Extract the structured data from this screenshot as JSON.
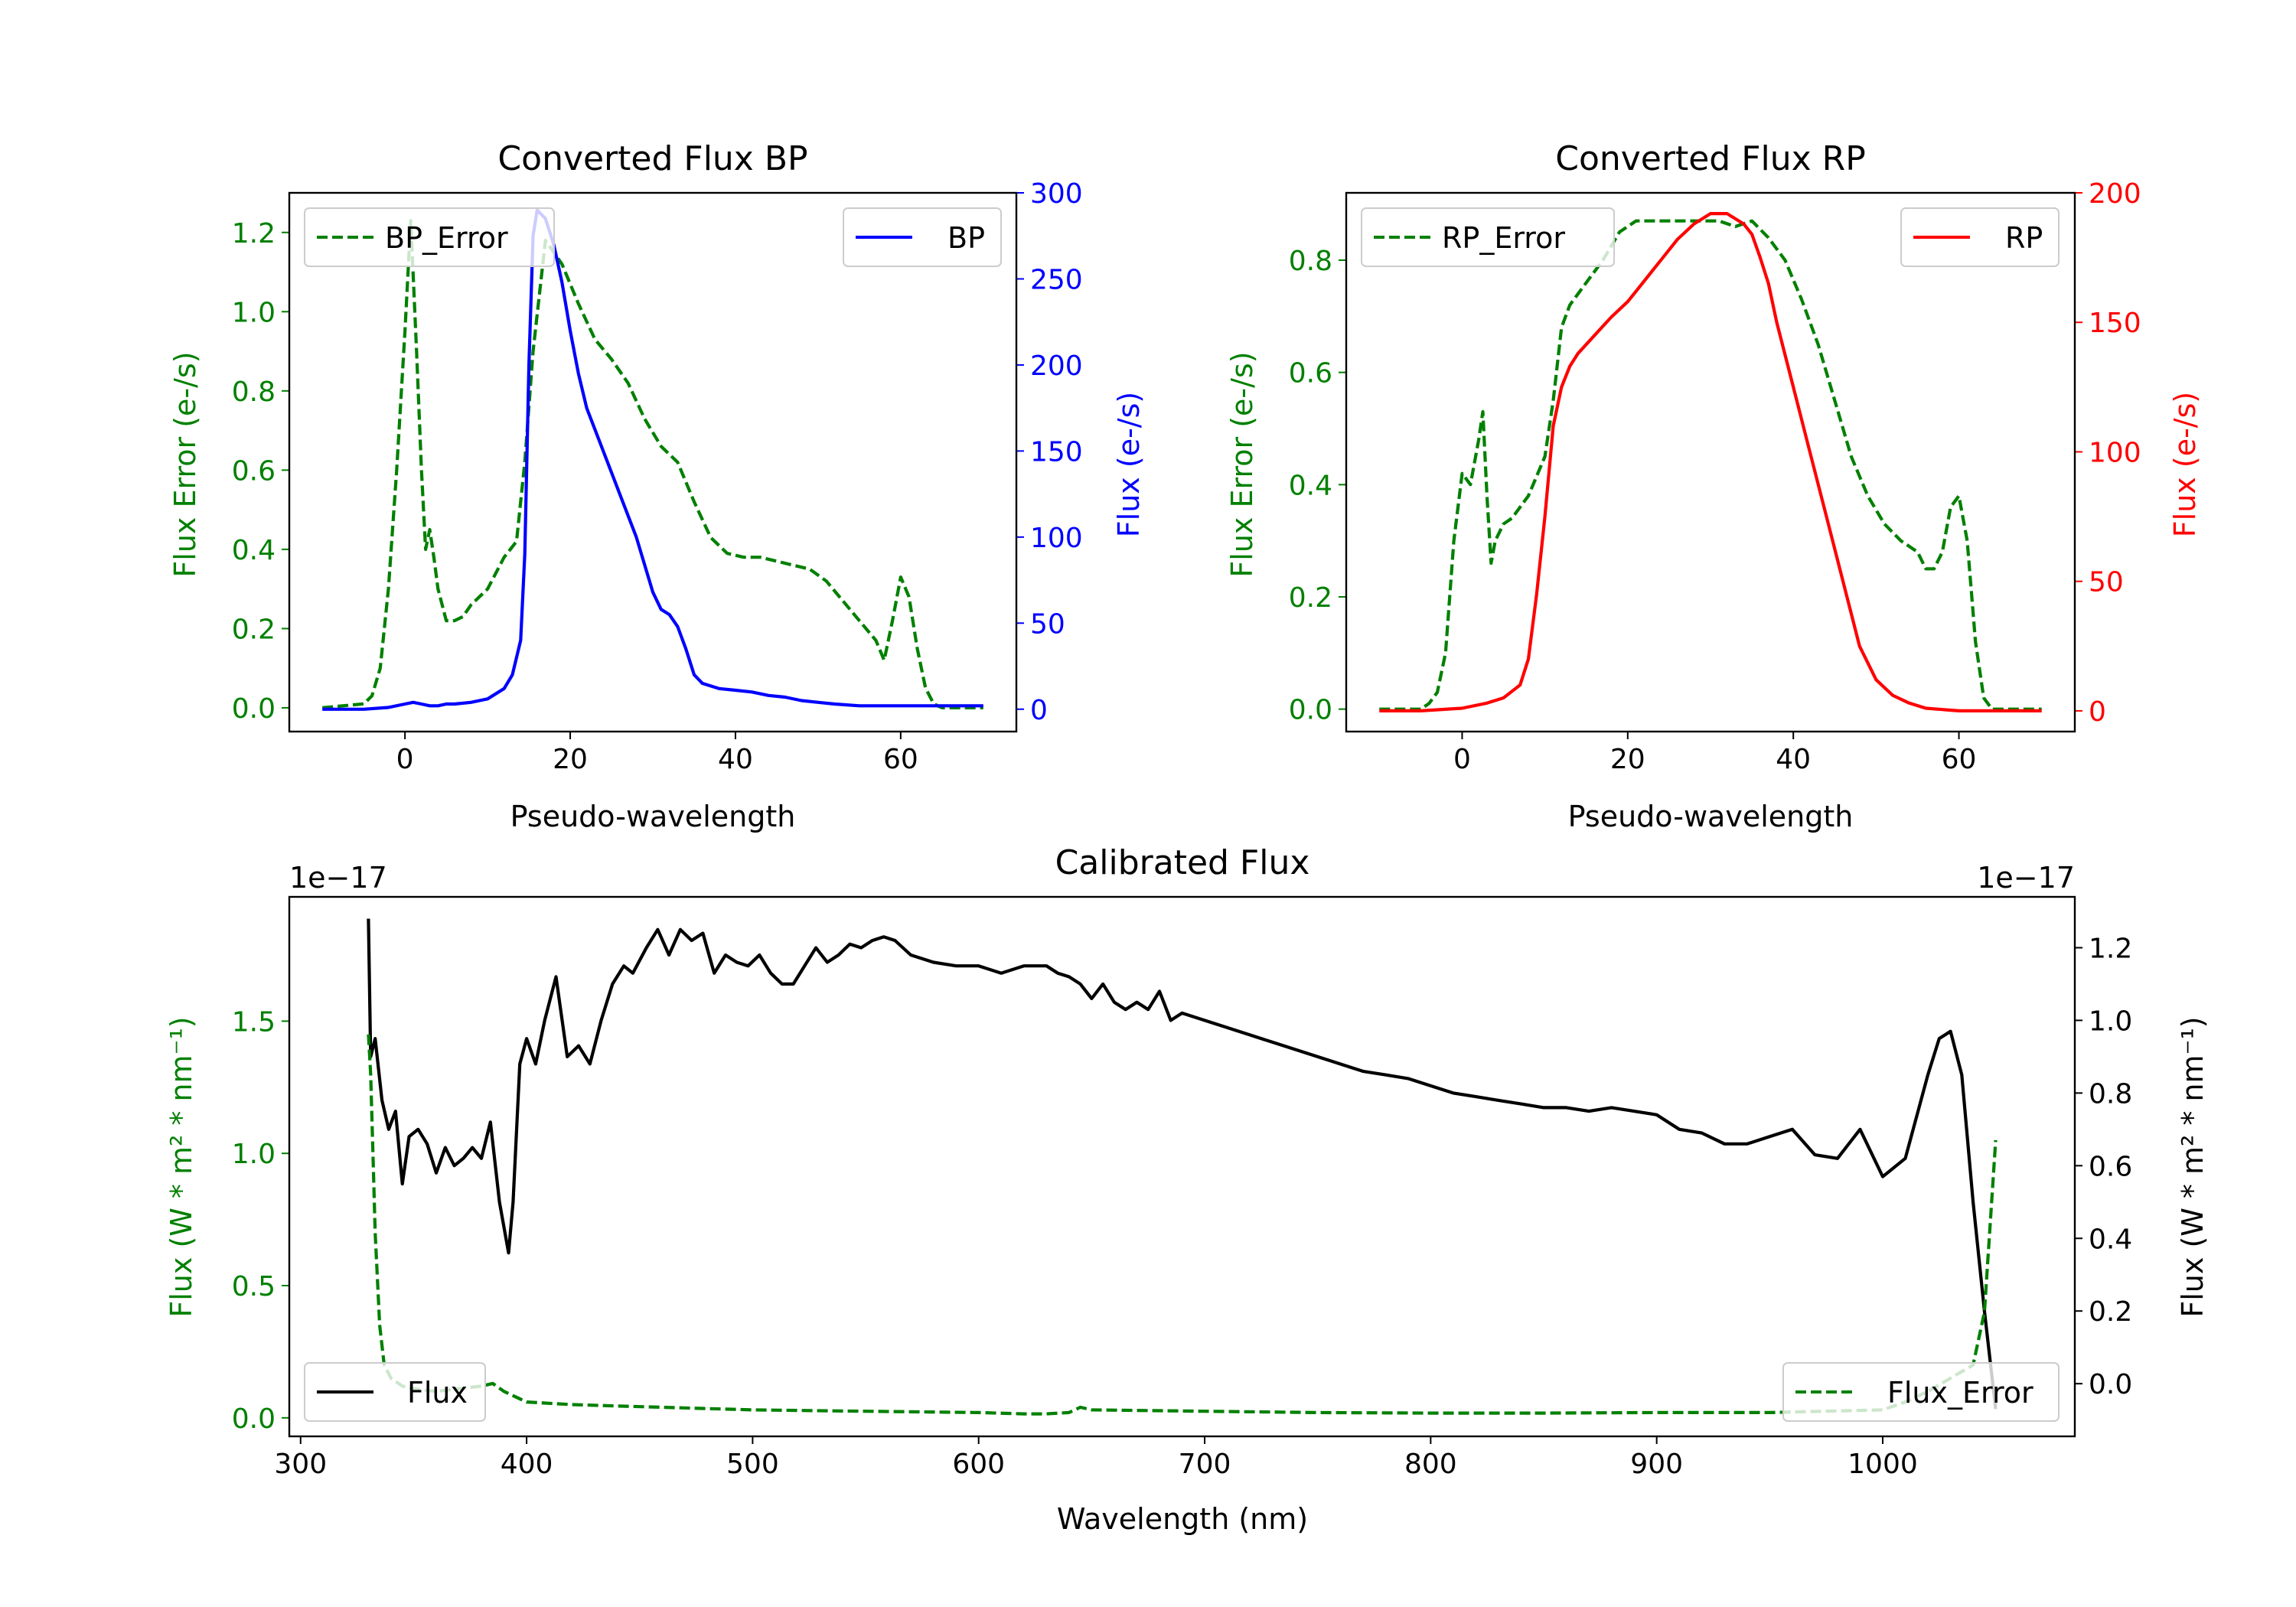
{
  "colors": {
    "green": "#008000",
    "blue": "#0000ff",
    "red": "#ff0000",
    "black": "#000000"
  },
  "chart_data": [
    {
      "type": "line",
      "title": "Converted Flux BP",
      "xlabel": "Pseudo-wavelength",
      "ylabel": "Flux Error (e-/s)",
      "ylabel_right": "Flux (e-/s)",
      "xlim": [
        -14,
        74
      ],
      "ylim": [
        -0.06,
        1.3
      ],
      "ylim_right": [
        -13,
        300
      ],
      "xticks": [
        "0",
        "20",
        "40",
        "60"
      ],
      "yticks": [
        "0.0",
        "0.2",
        "0.4",
        "0.6",
        "0.8",
        "1.0",
        "1.2"
      ],
      "yticks_right": [
        "0",
        "50",
        "100",
        "150",
        "200",
        "250",
        "300"
      ],
      "legend_left": "BP_Error",
      "legend_right": "BP",
      "series": [
        {
          "name": "BP_Error",
          "axis": "left",
          "style": "dashed",
          "color": "#008000",
          "x": [
            -10,
            -5,
            -4,
            -3,
            -2,
            -1,
            0,
            0.7,
            1.4,
            2,
            2.5,
            3,
            3.5,
            4,
            5,
            6,
            7,
            8,
            10,
            12,
            13.5,
            14.5,
            15.5,
            17,
            19,
            21,
            23,
            25,
            27,
            29,
            31,
            33,
            35,
            37,
            39,
            41,
            43,
            45,
            47,
            49,
            51,
            53,
            55,
            57,
            58,
            59,
            60,
            61,
            62,
            63,
            64,
            65,
            66,
            70
          ],
          "y": [
            0,
            0.01,
            0.03,
            0.1,
            0.3,
            0.6,
            0.95,
            1.23,
            0.9,
            0.6,
            0.4,
            0.45,
            0.38,
            0.3,
            0.22,
            0.22,
            0.23,
            0.26,
            0.3,
            0.38,
            0.42,
            0.62,
            0.9,
            1.18,
            1.12,
            1.02,
            0.93,
            0.88,
            0.82,
            0.73,
            0.66,
            0.62,
            0.52,
            0.43,
            0.39,
            0.38,
            0.38,
            0.37,
            0.36,
            0.35,
            0.32,
            0.27,
            0.22,
            0.17,
            0.12,
            0.22,
            0.33,
            0.28,
            0.15,
            0.05,
            0.01,
            0,
            0,
            0
          ]
        },
        {
          "name": "BP",
          "axis": "right",
          "style": "solid",
          "color": "#0000ff",
          "x": [
            -10,
            -5,
            -2,
            0,
            1,
            2,
            3,
            4,
            5,
            6,
            8,
            10,
            12,
            13,
            14,
            14.5,
            15,
            15.5,
            16,
            17,
            18,
            19,
            20,
            21,
            22,
            24,
            26,
            28,
            30,
            31,
            32,
            33,
            34,
            35,
            36,
            38,
            40,
            42,
            44,
            46,
            48,
            50,
            52,
            55,
            58,
            60,
            62,
            65,
            70
          ],
          "y": [
            0,
            0,
            1,
            3,
            4,
            3,
            2,
            2,
            3,
            3,
            4,
            6,
            12,
            20,
            40,
            90,
            200,
            275,
            290,
            285,
            270,
            248,
            220,
            195,
            175,
            150,
            125,
            100,
            68,
            58,
            55,
            48,
            35,
            20,
            15,
            12,
            11,
            10,
            8,
            7,
            5,
            4,
            3,
            2,
            2,
            2,
            2,
            2,
            2
          ]
        }
      ]
    },
    {
      "type": "line",
      "title": "Converted Flux RP",
      "xlabel": "Pseudo-wavelength",
      "ylabel": "Flux Error (e-/s)",
      "ylabel_right": "Flux (e-/s)",
      "xlim": [
        -14,
        74
      ],
      "ylim": [
        -0.04,
        0.92
      ],
      "ylim_right": [
        -8,
        200
      ],
      "xticks": [
        "0",
        "20",
        "40",
        "60"
      ],
      "yticks": [
        "0.0",
        "0.2",
        "0.4",
        "0.6",
        "0.8"
      ],
      "yticks_right": [
        "0",
        "50",
        "100",
        "150",
        "200"
      ],
      "legend_left": "RP_Error",
      "legend_right": "RP",
      "series": [
        {
          "name": "RP_Error",
          "axis": "left",
          "style": "dashed",
          "color": "#008000",
          "x": [
            -10,
            -5,
            -4,
            -3,
            -2,
            -1,
            0,
            1,
            2,
            2.5,
            3,
            3.5,
            4,
            5,
            6,
            7,
            8,
            10,
            11,
            12,
            13,
            14,
            15,
            17,
            19,
            21,
            23,
            25,
            27,
            29,
            31,
            33,
            35,
            37,
            39,
            41,
            43,
            45,
            47,
            49,
            51,
            53,
            55,
            56,
            57,
            58,
            59,
            60,
            61,
            62,
            63,
            64,
            70
          ],
          "y": [
            0,
            0,
            0.01,
            0.03,
            0.1,
            0.3,
            0.42,
            0.4,
            0.48,
            0.53,
            0.38,
            0.26,
            0.3,
            0.33,
            0.34,
            0.36,
            0.38,
            0.45,
            0.55,
            0.68,
            0.72,
            0.74,
            0.76,
            0.8,
            0.85,
            0.87,
            0.87,
            0.87,
            0.87,
            0.87,
            0.87,
            0.86,
            0.87,
            0.84,
            0.8,
            0.73,
            0.65,
            0.55,
            0.45,
            0.38,
            0.33,
            0.3,
            0.28,
            0.25,
            0.25,
            0.28,
            0.36,
            0.38,
            0.3,
            0.12,
            0.02,
            0,
            0
          ]
        },
        {
          "name": "RP",
          "axis": "right",
          "style": "solid",
          "color": "#ff0000",
          "x": [
            -10,
            -5,
            0,
            3,
            5,
            7,
            8,
            9,
            10,
            11,
            12,
            13,
            14,
            16,
            18,
            20,
            22,
            24,
            26,
            28,
            30,
            32,
            34,
            35,
            36,
            37,
            38,
            40,
            42,
            44,
            46,
            48,
            50,
            52,
            54,
            56,
            58,
            60,
            62,
            65,
            70
          ],
          "y": [
            0,
            0,
            1,
            3,
            5,
            10,
            20,
            45,
            75,
            110,
            125,
            133,
            138,
            145,
            152,
            158,
            166,
            174,
            182,
            188,
            192,
            192,
            188,
            184,
            175,
            165,
            150,
            125,
            100,
            75,
            50,
            25,
            12,
            6,
            3,
            1,
            0.5,
            0,
            0,
            0,
            0
          ]
        }
      ]
    },
    {
      "type": "line",
      "title": "Calibrated Flux",
      "xlabel": "Wavelength (nm)",
      "ylabel": "Flux (W * m² * nm⁻¹)",
      "ylabel_right": "Flux (W * m² * nm⁻¹)",
      "offset_left": "1e−17",
      "offset_right": "1e−17",
      "xlim": [
        295,
        1085
      ],
      "ylim": [
        -0.07,
        1.97
      ],
      "ylim_right": [
        -0.145,
        1.34
      ],
      "xticks": [
        "300",
        "400",
        "500",
        "600",
        "700",
        "800",
        "900",
        "1000"
      ],
      "yticks": [
        "0.0",
        "0.5",
        "1.0",
        "1.5"
      ],
      "yticks_right": [
        "0.0",
        "0.2",
        "0.4",
        "0.6",
        "0.8",
        "1.0",
        "1.2"
      ],
      "legend_left": "Flux",
      "legend_right": "Flux_Error",
      "series": [
        {
          "name": "Flux",
          "axis": "right",
          "style": "solid",
          "color": "#000000",
          "x": [
            330,
            331,
            333,
            336,
            339,
            342,
            345,
            348,
            352,
            356,
            360,
            364,
            368,
            372,
            376,
            380,
            384,
            388,
            392,
            394,
            397,
            400,
            404,
            408,
            413,
            418,
            423,
            428,
            433,
            438,
            443,
            447,
            453,
            458,
            463,
            468,
            473,
            478,
            483,
            488,
            493,
            498,
            503,
            508,
            513,
            518,
            523,
            528,
            533,
            538,
            543,
            548,
            553,
            558,
            563,
            570,
            580,
            590,
            600,
            610,
            620,
            630,
            635,
            640,
            645,
            650,
            655,
            660,
            665,
            670,
            675,
            680,
            685,
            690,
            700,
            710,
            720,
            730,
            740,
            750,
            760,
            770,
            780,
            790,
            800,
            810,
            820,
            830,
            840,
            850,
            860,
            870,
            880,
            890,
            900,
            910,
            920,
            930,
            940,
            950,
            960,
            970,
            980,
            990,
            1000,
            1010,
            1020,
            1025,
            1030,
            1035,
            1040,
            1045,
            1050
          ],
          "y": [
            1.28,
            0.9,
            0.95,
            0.78,
            0.7,
            0.75,
            0.55,
            0.68,
            0.7,
            0.66,
            0.58,
            0.65,
            0.6,
            0.62,
            0.65,
            0.62,
            0.72,
            0.5,
            0.36,
            0.5,
            0.88,
            0.95,
            0.88,
            1.0,
            1.12,
            0.9,
            0.93,
            0.88,
            1.0,
            1.1,
            1.15,
            1.13,
            1.2,
            1.25,
            1.18,
            1.25,
            1.22,
            1.24,
            1.13,
            1.18,
            1.16,
            1.15,
            1.18,
            1.13,
            1.1,
            1.1,
            1.15,
            1.2,
            1.16,
            1.18,
            1.21,
            1.2,
            1.22,
            1.23,
            1.22,
            1.18,
            1.16,
            1.15,
            1.15,
            1.13,
            1.15,
            1.15,
            1.13,
            1.12,
            1.1,
            1.06,
            1.1,
            1.05,
            1.03,
            1.05,
            1.03,
            1.08,
            1.0,
            1.02,
            1.0,
            0.98,
            0.96,
            0.94,
            0.92,
            0.9,
            0.88,
            0.86,
            0.85,
            0.84,
            0.82,
            0.8,
            0.79,
            0.78,
            0.77,
            0.76,
            0.76,
            0.75,
            0.76,
            0.75,
            0.74,
            0.7,
            0.69,
            0.66,
            0.66,
            0.68,
            0.7,
            0.63,
            0.62,
            0.7,
            0.57,
            0.62,
            0.85,
            0.95,
            0.97,
            0.85,
            0.5,
            0.2,
            -0.07
          ]
        },
        {
          "name": "Flux_Error",
          "axis": "left",
          "style": "dashed",
          "color": "#008000",
          "x": [
            330,
            331,
            332,
            333,
            335,
            337,
            340,
            345,
            350,
            360,
            370,
            380,
            385,
            390,
            395,
            400,
            420,
            440,
            460,
            480,
            500,
            550,
            600,
            620,
            630,
            640,
            645,
            650,
            700,
            750,
            800,
            850,
            900,
            950,
            1000,
            1010,
            1020,
            1030,
            1040,
            1045,
            1050
          ],
          "y": [
            1.45,
            1.3,
            1.0,
            0.7,
            0.35,
            0.2,
            0.15,
            0.12,
            0.11,
            0.1,
            0.11,
            0.12,
            0.13,
            0.1,
            0.08,
            0.06,
            0.05,
            0.045,
            0.04,
            0.035,
            0.03,
            0.025,
            0.02,
            0.015,
            0.015,
            0.02,
            0.04,
            0.03,
            0.025,
            0.02,
            0.018,
            0.018,
            0.02,
            0.02,
            0.03,
            0.06,
            0.1,
            0.15,
            0.2,
            0.4,
            1.05
          ]
        }
      ]
    }
  ]
}
